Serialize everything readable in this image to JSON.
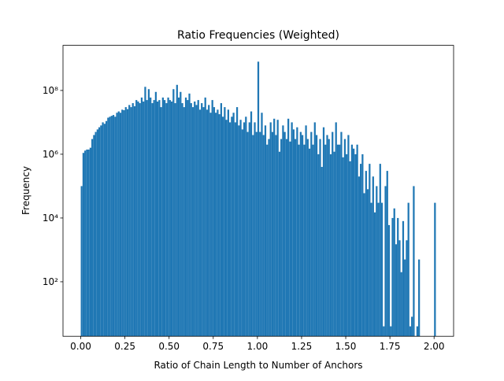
{
  "chart_data": {
    "type": "histogram",
    "title": "Ratio Frequencies (Weighted)",
    "xlabel": "Ratio of Chain Length to Number of Anchors",
    "ylabel": "Frequency",
    "color": "#1f77b4",
    "yscale": "log",
    "bins": [
      0,
      0.01,
      0.02,
      0.03,
      0.04,
      0.05,
      0.06,
      0.07,
      0.08,
      0.09,
      0.1,
      0.11,
      0.12,
      0.13,
      0.14,
      0.15,
      0.16,
      0.17,
      0.18,
      0.19,
      0.2,
      0.21,
      0.22,
      0.23,
      0.24,
      0.25,
      0.26,
      0.27,
      0.28,
      0.29,
      0.3,
      0.31,
      0.32,
      0.33,
      0.34,
      0.35,
      0.36,
      0.37,
      0.38,
      0.39,
      0.4,
      0.41,
      0.42,
      0.43,
      0.44,
      0.45,
      0.46,
      0.47,
      0.48,
      0.49,
      0.5,
      0.51,
      0.52,
      0.53,
      0.54,
      0.55,
      0.56,
      0.57,
      0.58,
      0.59,
      0.6,
      0.61,
      0.62,
      0.63,
      0.64,
      0.65,
      0.66,
      0.67,
      0.68,
      0.69,
      0.7,
      0.71,
      0.72,
      0.73,
      0.74,
      0.75,
      0.76,
      0.77,
      0.78,
      0.79,
      0.8,
      0.81,
      0.82,
      0.83,
      0.84,
      0.85,
      0.86,
      0.87,
      0.88,
      0.89,
      0.9,
      0.91,
      0.92,
      0.93,
      0.94,
      0.95,
      0.96,
      0.97,
      0.98,
      0.99,
      1,
      1.01,
      1.02,
      1.03,
      1.04,
      1.05,
      1.06,
      1.07,
      1.08,
      1.09,
      1.1,
      1.11,
      1.12,
      1.13,
      1.14,
      1.15,
      1.16,
      1.17,
      1.18,
      1.19,
      1.2,
      1.21,
      1.22,
      1.23,
      1.24,
      1.25,
      1.26,
      1.27,
      1.28,
      1.29,
      1.3,
      1.31,
      1.32,
      1.33,
      1.34,
      1.35,
      1.36,
      1.37,
      1.38,
      1.39,
      1.4,
      1.41,
      1.42,
      1.43,
      1.44,
      1.45,
      1.46,
      1.47,
      1.48,
      1.49,
      1.5,
      1.51,
      1.52,
      1.53,
      1.54,
      1.55,
      1.56,
      1.57,
      1.58,
      1.59,
      1.6,
      1.61,
      1.62,
      1.63,
      1.64,
      1.65,
      1.66,
      1.67,
      1.68,
      1.69,
      1.7,
      1.71,
      1.72,
      1.73,
      1.74,
      1.75,
      1.76,
      1.77,
      1.78,
      1.79,
      1.8,
      1.81,
      1.82,
      1.83,
      1.84,
      1.85,
      1.86,
      1.87,
      1.88,
      1.89,
      1.9,
      1.91,
      1.92,
      1.93,
      1.94,
      1.95,
      1.96,
      1.97,
      1.98,
      1.99,
      2,
      2.01
    ],
    "counts": [
      100000.0,
      1100000.0,
      1300000.0,
      1400000.0,
      1400000.0,
      1600000.0,
      3000000.0,
      4000000.0,
      5000000.0,
      6000000.0,
      7000000.0,
      8000000.0,
      10000000.0,
      9000000.0,
      11000000.0,
      14000000.0,
      15000000.0,
      16000000.0,
      17000000.0,
      15000000.0,
      20000000.0,
      22000000.0,
      20000000.0,
      25000000.0,
      24000000.0,
      30000000.0,
      26000000.0,
      35000000.0,
      30000000.0,
      40000000.0,
      32000000.0,
      50000000.0,
      45000000.0,
      40000000.0,
      60000000.0,
      45000000.0,
      130000000.0,
      50000000.0,
      110000000.0,
      60000000.0,
      40000000.0,
      50000000.0,
      90000000.0,
      45000000.0,
      50000000.0,
      30000000.0,
      60000000.0,
      50000000.0,
      40000000.0,
      60000000.0,
      50000000.0,
      45000000.0,
      110000000.0,
      40000000.0,
      150000000.0,
      60000000.0,
      90000000.0,
      40000000.0,
      30000000.0,
      60000000.0,
      50000000.0,
      80000000.0,
      40000000.0,
      30000000.0,
      45000000.0,
      35000000.0,
      50000000.0,
      25000000.0,
      40000000.0,
      30000000.0,
      60000000.0,
      25000000.0,
      35000000.0,
      20000000.0,
      50000000.0,
      30000000.0,
      20000000.0,
      25000000.0,
      18000000.0,
      40000000.0,
      15000000.0,
      30000000.0,
      12000000.0,
      25000000.0,
      10000000.0,
      15000000.0,
      20000000.0,
      10000000.0,
      30000000.0,
      8000000.0,
      12000000.0,
      6000000.0,
      10000000.0,
      15000000.0,
      5000000.0,
      10000000.0,
      22000000.0,
      4000000.0,
      10000000.0,
      5000000.0,
      800000000.0,
      5000000.0,
      20000000.0,
      4000000.0,
      8000000.0,
      2000000.0,
      3000000.0,
      10000000.0,
      5000000.0,
      13000000.0,
      4000000.0,
      12000000.0,
      1200000.0,
      3000000.0,
      8000000.0,
      5000000.0,
      3000000.0,
      13000000.0,
      2500000.0,
      10000000.0,
      6000000.0,
      3000000.0,
      7000000.0,
      2000000.0,
      5000000.0,
      4000000.0,
      2000000.0,
      8000000.0,
      3000000.0,
      1500000.0,
      5000000.0,
      2000000.0,
      10000000.0,
      4000000.0,
      1000000.0,
      3000000.0,
      400000.0,
      7000000.0,
      2000000.0,
      4000000.0,
      3000000.0,
      1000000.0,
      5000000.0,
      1200000.0,
      10000000.0,
      2000000.0,
      2000000.0,
      5000000.0,
      800000.0,
      3000000.0,
      1000000.0,
      4000000.0,
      600000.0,
      2000000.0,
      1500000.0,
      1000000.0,
      2000000.0,
      200000.0,
      500000.0,
      1000000.0,
      60000.0,
      300000.0,
      80000.0,
      500000.0,
      30000.0,
      200000.0,
      15000.0,
      100000.0,
      30000.0,
      500000.0,
      30000.0,
      4,
      100000.0,
      300000.0,
      6000.0,
      4,
      10000.0,
      20000.0,
      1500.0,
      10000.0,
      2000.0,
      200,
      8000.0,
      500,
      2000.0,
      30000.0,
      4,
      8,
      100000.0,
      0,
      4,
      500,
      0,
      0,
      0,
      0,
      0,
      0,
      0,
      0,
      30000.0
    ],
    "xlim": [
      -0.1005,
      2.1105
    ],
    "ylim": [
      1.95,
      2600000000.0
    ],
    "xticks": [
      {
        "value": 0,
        "label": "0.00"
      },
      {
        "value": 0.25,
        "label": "0.25"
      },
      {
        "value": 0.5,
        "label": "0.50"
      },
      {
        "value": 0.75,
        "label": "0.75"
      },
      {
        "value": 1,
        "label": "1.00"
      },
      {
        "value": 1.25,
        "label": "1.25"
      },
      {
        "value": 1.5,
        "label": "1.50"
      },
      {
        "value": 1.75,
        "label": "1.75"
      },
      {
        "value": 2,
        "label": "2.00"
      }
    ],
    "yticks": [
      {
        "value": 100,
        "label": "10²"
      },
      {
        "value": 10000,
        "label": "10⁴"
      },
      {
        "value": 1000000,
        "label": "10⁶"
      },
      {
        "value": 100000000,
        "label": "10⁸"
      }
    ]
  }
}
